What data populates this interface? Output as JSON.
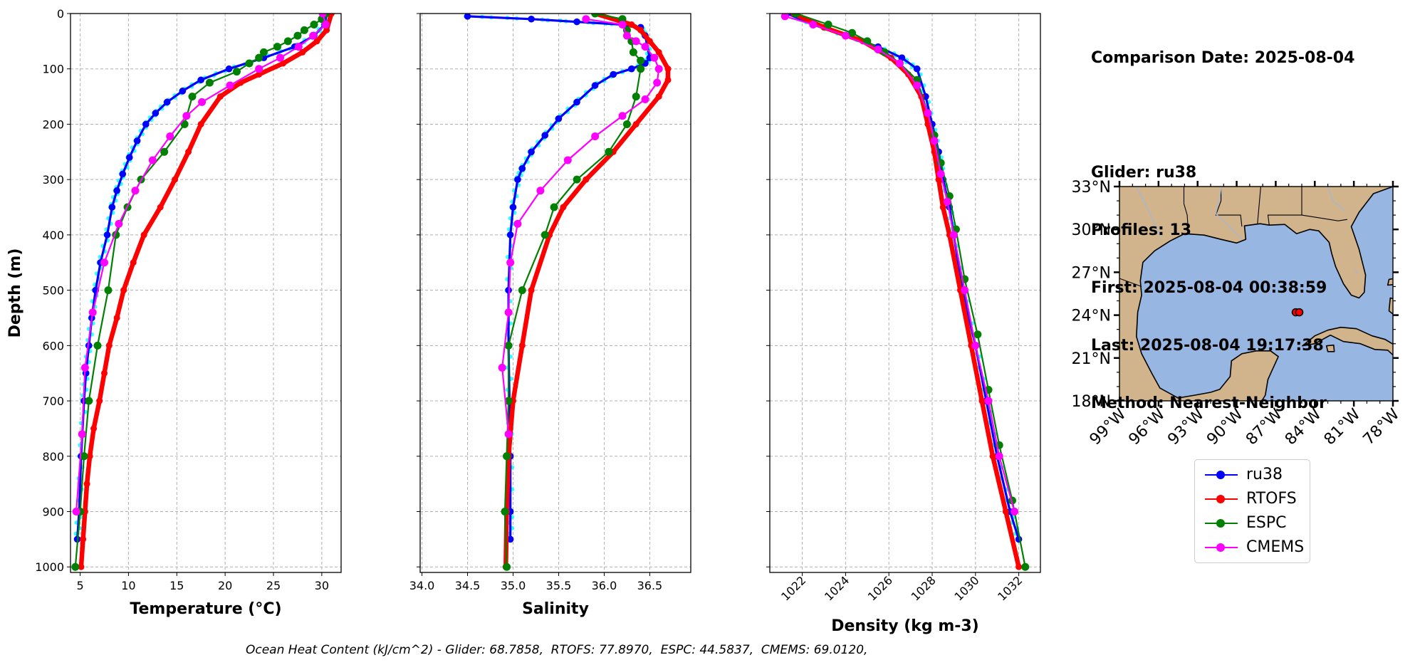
{
  "info": {
    "comparison_date": "Comparison Date: 2025-08-04",
    "glider": "Glider: ru38",
    "profiles": "Profiles: 13",
    "first": "First: 2025-08-04 00:38:59",
    "last": "Last: 2025-08-04 19:17:38",
    "method": "Method: Nearest-Neighbor"
  },
  "footnote": "Ocean Heat Content (kJ/cm^2) - Glider: 68.7858,  RTOFS: 77.8970,  ESPC: 44.5837,  CMEMS: 69.0120,",
  "colors": {
    "ru38": "#0000ff",
    "ru38_raw": "#00ffff",
    "RTOFS": "#ff0000",
    "ESPC": "#008000",
    "CMEMS": "#ff00ff",
    "land": "#d2b48c",
    "ocean": "#97b6e1"
  },
  "legend": [
    {
      "name": "ru38",
      "color": "#0000ff"
    },
    {
      "name": "RTOFS",
      "color": "#ff0000"
    },
    {
      "name": "ESPC",
      "color": "#008000"
    },
    {
      "name": "CMEMS",
      "color": "#ff00ff"
    }
  ],
  "chart_data": [
    {
      "type": "line",
      "xlabel": "Temperature (°C)",
      "ylabel": "Depth (m)",
      "xlim": [
        4,
        32
      ],
      "ylim": [
        1010,
        0
      ],
      "xticks": [
        5,
        10,
        15,
        20,
        25,
        30
      ],
      "yticks": [
        0,
        100,
        200,
        300,
        400,
        500,
        600,
        700,
        800,
        900,
        1000
      ],
      "grid": true,
      "series": [
        {
          "name": "ru38",
          "points": [
            [
              30.5,
              0
            ],
            [
              30.3,
              20
            ],
            [
              29.2,
              40
            ],
            [
              27.2,
              60
            ],
            [
              24,
              80
            ],
            [
              20.4,
              100
            ],
            [
              17.5,
              120
            ],
            [
              15.6,
              140
            ],
            [
              14,
              160
            ],
            [
              12.8,
              180
            ],
            [
              11.8,
              200
            ],
            [
              10.9,
              230
            ],
            [
              10.1,
              260
            ],
            [
              9.4,
              290
            ],
            [
              8.8,
              320
            ],
            [
              8.3,
              350
            ],
            [
              7.8,
              400
            ],
            [
              7.1,
              450
            ],
            [
              6.6,
              500
            ],
            [
              6.2,
              550
            ],
            [
              5.9,
              600
            ],
            [
              5.6,
              650
            ],
            [
              5.4,
              700
            ],
            [
              5.1,
              800
            ],
            [
              4.9,
              900
            ],
            [
              4.7,
              950
            ]
          ]
        },
        {
          "name": "RTOFS",
          "points": [
            [
              31,
              0
            ],
            [
              30.5,
              30
            ],
            [
              29.5,
              50
            ],
            [
              28,
              70
            ],
            [
              26,
              90
            ],
            [
              23.5,
              110
            ],
            [
              21.6,
              125
            ],
            [
              19.5,
              150
            ],
            [
              17.5,
              200
            ],
            [
              16.2,
              250
            ],
            [
              14.8,
              300
            ],
            [
              13.3,
              350
            ],
            [
              11.6,
              400
            ],
            [
              10.5,
              450
            ],
            [
              9.5,
              500
            ],
            [
              8.8,
              550
            ],
            [
              8,
              600
            ],
            [
              7.5,
              650
            ],
            [
              7,
              700
            ],
            [
              6.4,
              750
            ],
            [
              6,
              800
            ],
            [
              5.7,
              850
            ],
            [
              5.5,
              900
            ],
            [
              5.3,
              950
            ],
            [
              5.1,
              1000
            ]
          ]
        },
        {
          "name": "ESPC",
          "points": [
            [
              30.4,
              0
            ],
            [
              30,
              10
            ],
            [
              29.2,
              20
            ],
            [
              28.2,
              30
            ],
            [
              27.5,
              40
            ],
            [
              26.5,
              50
            ],
            [
              25.4,
              60
            ],
            [
              24,
              70
            ],
            [
              23.5,
              80
            ],
            [
              22.5,
              90
            ],
            [
              21.2,
              105
            ],
            [
              18.4,
              125
            ],
            [
              16.6,
              150
            ],
            [
              15.8,
              200
            ],
            [
              13.7,
              250
            ],
            [
              11.3,
              300
            ],
            [
              9.9,
              350
            ],
            [
              8.7,
              400
            ],
            [
              7.9,
              500
            ],
            [
              6.8,
              600
            ],
            [
              5.9,
              700
            ],
            [
              5.4,
              800
            ],
            [
              5,
              900
            ],
            [
              4.5,
              1000
            ]
          ]
        },
        {
          "name": "CMEMS",
          "points": [
            [
              30.1,
              0
            ],
            [
              30.4,
              20
            ],
            [
              29.1,
              40
            ],
            [
              27.6,
              60
            ],
            [
              25.7,
              80
            ],
            [
              23.5,
              100
            ],
            [
              20.5,
              130
            ],
            [
              17.6,
              160
            ],
            [
              16,
              185
            ],
            [
              14.3,
              222
            ],
            [
              12.5,
              265
            ],
            [
              10.7,
              320
            ],
            [
              9,
              380
            ],
            [
              7.5,
              450
            ],
            [
              6.3,
              540
            ],
            [
              5.5,
              640
            ],
            [
              5.2,
              760
            ],
            [
              4.6,
              900
            ]
          ]
        }
      ]
    },
    {
      "type": "line",
      "xlabel": "Salinity",
      "xlim": [
        33.98,
        36.95
      ],
      "ylim": [
        1010,
        0
      ],
      "xticks": [
        34.0,
        34.5,
        35.0,
        35.5,
        36.0,
        36.5
      ],
      "grid": true,
      "series": [
        {
          "name": "ru38",
          "points": [
            [
              34.5,
              5
            ],
            [
              35.2,
              10
            ],
            [
              35.7,
              15
            ],
            [
              36.2,
              20
            ],
            [
              36.4,
              25
            ],
            [
              36.45,
              40
            ],
            [
              36.5,
              80
            ],
            [
              36.45,
              90
            ],
            [
              36.3,
              100
            ],
            [
              36.1,
              110
            ],
            [
              35.9,
              130
            ],
            [
              35.7,
              160
            ],
            [
              35.5,
              190
            ],
            [
              35.35,
              220
            ],
            [
              35.2,
              250
            ],
            [
              35.1,
              280
            ],
            [
              35.05,
              300
            ],
            [
              35,
              350
            ],
            [
              34.97,
              400
            ],
            [
              34.95,
              500
            ],
            [
              34.95,
              600
            ],
            [
              34.96,
              700
            ],
            [
              34.97,
              800
            ],
            [
              34.97,
              900
            ],
            [
              34.97,
              950
            ]
          ]
        },
        {
          "name": "RTOFS",
          "points": [
            [
              35.9,
              0
            ],
            [
              36.3,
              20
            ],
            [
              36.4,
              30
            ],
            [
              36.5,
              50
            ],
            [
              36.6,
              70
            ],
            [
              36.7,
              100
            ],
            [
              36.7,
              120
            ],
            [
              36.6,
              150
            ],
            [
              36.35,
              200
            ],
            [
              36.1,
              250
            ],
            [
              35.8,
              300
            ],
            [
              35.55,
              350
            ],
            [
              35.4,
              400
            ],
            [
              35.2,
              500
            ],
            [
              35.1,
              600
            ],
            [
              35,
              700
            ],
            [
              34.95,
              800
            ],
            [
              34.93,
              900
            ],
            [
              34.92,
              1000
            ]
          ]
        },
        {
          "name": "ESPC",
          "points": [
            [
              35.9,
              0
            ],
            [
              36.2,
              10
            ],
            [
              36.25,
              30
            ],
            [
              36.3,
              50
            ],
            [
              36.32,
              70
            ],
            [
              36.4,
              85
            ],
            [
              36.4,
              100
            ],
            [
              36.35,
              150
            ],
            [
              36.25,
              200
            ],
            [
              36.05,
              250
            ],
            [
              35.7,
              300
            ],
            [
              35.45,
              350
            ],
            [
              35.35,
              400
            ],
            [
              35.1,
              500
            ],
            [
              34.95,
              600
            ],
            [
              34.95,
              700
            ],
            [
              34.93,
              800
            ],
            [
              34.91,
              900
            ],
            [
              34.93,
              1000
            ]
          ]
        },
        {
          "name": "CMEMS",
          "points": [
            [
              35.8,
              10
            ],
            [
              36.2,
              20
            ],
            [
              36.25,
              40
            ],
            [
              36.35,
              50
            ],
            [
              36.45,
              60
            ],
            [
              36.55,
              80
            ],
            [
              36.6,
              100
            ],
            [
              36.58,
              125
            ],
            [
              36.45,
              155
            ],
            [
              36.2,
              185
            ],
            [
              35.9,
              222
            ],
            [
              35.6,
              265
            ],
            [
              35.3,
              320
            ],
            [
              35.05,
              380
            ],
            [
              34.97,
              450
            ],
            [
              34.95,
              540
            ],
            [
              34.88,
              640
            ],
            [
              34.95,
              760
            ]
          ]
        }
      ]
    },
    {
      "type": "line",
      "xlabel": "Density (kg m-3)",
      "xlim": [
        1020.5,
        1033
      ],
      "ylim": [
        1010,
        0
      ],
      "xticks": [
        1022,
        1024,
        1026,
        1028,
        1030,
        1032
      ],
      "grid": true,
      "series": [
        {
          "name": "ru38",
          "points": [
            [
              1021.3,
              0
            ],
            [
              1022.5,
              20
            ],
            [
              1024,
              40
            ],
            [
              1025.5,
              60
            ],
            [
              1026.6,
              80
            ],
            [
              1027.3,
              100
            ],
            [
              1027.7,
              150
            ],
            [
              1028,
              200
            ],
            [
              1028.3,
              250
            ],
            [
              1028.5,
              300
            ],
            [
              1028.8,
              350
            ],
            [
              1029,
              400
            ],
            [
              1029.4,
              500
            ],
            [
              1030,
              600
            ],
            [
              1030.5,
              700
            ],
            [
              1031,
              800
            ],
            [
              1031.6,
              900
            ],
            [
              1032,
              950
            ]
          ]
        },
        {
          "name": "RTOFS",
          "points": [
            [
              1021.6,
              0
            ],
            [
              1023,
              25
            ],
            [
              1024.8,
              50
            ],
            [
              1026.1,
              80
            ],
            [
              1026.9,
              110
            ],
            [
              1027.5,
              150
            ],
            [
              1027.8,
              200
            ],
            [
              1028.1,
              250
            ],
            [
              1028.3,
              300
            ],
            [
              1028.5,
              350
            ],
            [
              1028.8,
              400
            ],
            [
              1029.3,
              500
            ],
            [
              1029.8,
              600
            ],
            [
              1030.3,
              700
            ],
            [
              1030.8,
              800
            ],
            [
              1031.4,
              900
            ],
            [
              1032,
              1000
            ]
          ]
        },
        {
          "name": "ESPC",
          "points": [
            [
              1021.7,
              0
            ],
            [
              1023.2,
              20
            ],
            [
              1024.3,
              35
            ],
            [
              1025,
              50
            ],
            [
              1025.8,
              70
            ],
            [
              1026.5,
              90
            ],
            [
              1027.3,
              120
            ],
            [
              1027.8,
              180
            ],
            [
              1028.1,
              220
            ],
            [
              1028.4,
              270
            ],
            [
              1028.8,
              330
            ],
            [
              1029.1,
              390
            ],
            [
              1029.5,
              480
            ],
            [
              1030.1,
              580
            ],
            [
              1030.6,
              680
            ],
            [
              1031.1,
              780
            ],
            [
              1031.7,
              880
            ],
            [
              1032.3,
              1000
            ]
          ]
        },
        {
          "name": "CMEMS",
          "points": [
            [
              1021.2,
              5
            ],
            [
              1022.5,
              20
            ],
            [
              1024,
              40
            ],
            [
              1025.5,
              65
            ],
            [
              1026.5,
              90
            ],
            [
              1027.3,
              130
            ],
            [
              1027.8,
              180
            ],
            [
              1028.1,
              230
            ],
            [
              1028.4,
              290
            ],
            [
              1028.7,
              340
            ],
            [
              1029,
              400
            ],
            [
              1029.5,
              500
            ],
            [
              1030,
              600
            ],
            [
              1030.6,
              700
            ],
            [
              1031.1,
              800
            ],
            [
              1031.8,
              900
            ]
          ]
        }
      ]
    }
  ],
  "map": {
    "lon_ticks": [
      "99°W",
      "96°W",
      "93°W",
      "90°W",
      "87°W",
      "84°W",
      "81°W",
      "78°W"
    ],
    "lat_ticks": [
      "33°N",
      "30°N",
      "27°N",
      "24°N",
      "21°N",
      "18°N"
    ],
    "glider_position": {
      "lon": -85.3,
      "lat": 24.2
    }
  }
}
